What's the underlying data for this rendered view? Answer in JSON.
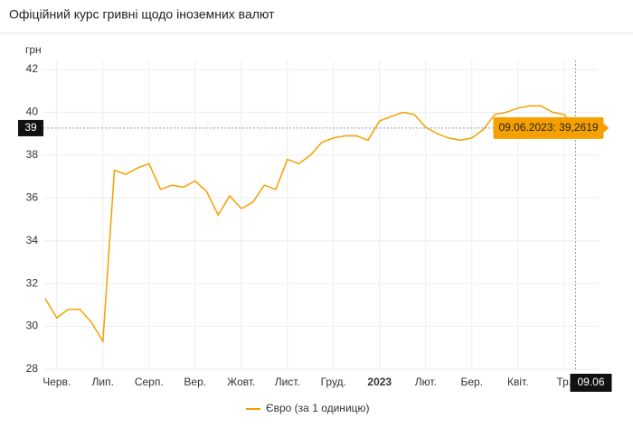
{
  "chart_data": {
    "type": "line",
    "title": "Офіційний курс гривні щодо іноземних валют",
    "y_unit": "грн",
    "categories": [
      null,
      "Черв.",
      null,
      null,
      null,
      "Лип.",
      null,
      null,
      null,
      "Серп.",
      null,
      null,
      null,
      "Вер.",
      null,
      null,
      null,
      "Жовт.",
      null,
      null,
      null,
      "Лист.",
      null,
      null,
      null,
      "Груд.",
      null,
      null,
      null,
      "2023",
      null,
      null,
      null,
      "Лют.",
      null,
      null,
      null,
      "Бер.",
      null,
      null,
      null,
      "Квіт.",
      null,
      null,
      null,
      "Тр.",
      "09.06"
    ],
    "bold_category": 29,
    "series": [
      {
        "name": "Євро (за 1 одиницю)",
        "color": "#f5a000",
        "values": [
          31.3,
          30.4,
          30.8,
          30.8,
          30.2,
          29.3,
          37.3,
          37.1,
          37.4,
          37.6,
          36.4,
          36.6,
          36.5,
          36.8,
          36.3,
          35.2,
          36.1,
          35.5,
          35.8,
          36.6,
          36.4,
          37.8,
          37.6,
          38.0,
          38.6,
          38.8,
          38.9,
          38.9,
          38.7,
          39.6,
          39.8,
          40.0,
          39.9,
          39.3,
          39.0,
          38.8,
          38.7,
          38.8,
          39.2,
          39.9,
          40.0,
          40.2,
          40.3,
          40.3,
          40.0,
          39.9,
          39.2619
        ]
      }
    ],
    "ylim": [
      28,
      42
    ],
    "yticks": [
      28,
      30,
      32,
      34,
      36,
      38,
      40,
      42
    ],
    "crosshair_y_label": "39",
    "tooltip": "09.06.2023: 39,2619",
    "grid": true
  }
}
